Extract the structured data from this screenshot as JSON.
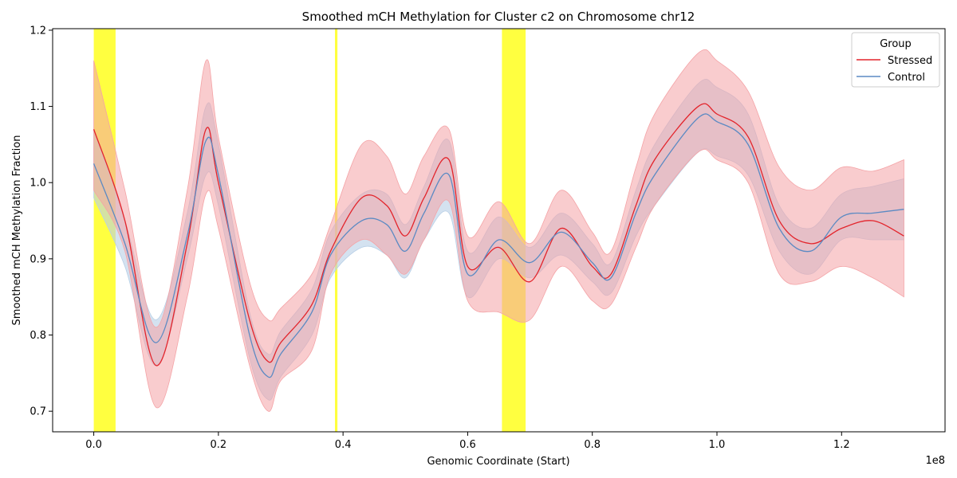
{
  "chart_data": {
    "type": "line",
    "title": "Smoothed mCH Methylation for Cluster c2 on Chromosome chr12",
    "xlabel": "Genomic Coordinate (Start)",
    "ylabel": "Smoothed mCH Methylation Fraction",
    "x_offset_label": "1e8",
    "xlim": [
      -0.066,
      1.366
    ],
    "ylim": [
      0.673,
      1.202
    ],
    "x_ticks": [
      0.0,
      0.2,
      0.4,
      0.6,
      0.8,
      1.0,
      1.2
    ],
    "x_tick_labels": [
      "0.0",
      "0.2",
      "0.4",
      "0.6",
      "0.8",
      "1.0",
      "1.2"
    ],
    "y_ticks": [
      0.7,
      0.8,
      0.9,
      1.0,
      1.1,
      1.2
    ],
    "y_tick_labels": [
      "0.7",
      "0.8",
      "0.9",
      "1.0",
      "1.1",
      "1.2"
    ],
    "grid": false,
    "legend": {
      "title": "Group",
      "position": "top-right"
    },
    "highlight_color": "#ffff00",
    "highlights": [
      [
        0.0,
        0.035
      ],
      [
        0.387,
        0.391
      ],
      [
        0.655,
        0.693
      ]
    ],
    "series": [
      {
        "name": "Stressed",
        "color": "#e3242b",
        "band_color": "#f4a3a6",
        "x": [
          0.0,
          0.05,
          0.1,
          0.15,
          0.18,
          0.2,
          0.25,
          0.28,
          0.3,
          0.35,
          0.38,
          0.43,
          0.47,
          0.5,
          0.53,
          0.57,
          0.6,
          0.65,
          0.7,
          0.75,
          0.8,
          0.83,
          0.87,
          0.9,
          0.97,
          1.0,
          1.05,
          1.1,
          1.15,
          1.2,
          1.25,
          1.3
        ],
        "y": [
          1.07,
          0.95,
          0.76,
          0.92,
          1.07,
          1.0,
          0.82,
          0.765,
          0.79,
          0.84,
          0.91,
          0.98,
          0.97,
          0.93,
          0.98,
          1.03,
          0.89,
          0.915,
          0.87,
          0.94,
          0.89,
          0.88,
          0.97,
          1.03,
          1.1,
          1.09,
          1.06,
          0.95,
          0.92,
          0.94,
          0.95,
          0.93
        ],
        "lower": [
          0.99,
          0.91,
          0.705,
          0.85,
          0.985,
          0.94,
          0.76,
          0.7,
          0.74,
          0.78,
          0.88,
          0.925,
          0.905,
          0.88,
          0.925,
          0.975,
          0.845,
          0.83,
          0.82,
          0.89,
          0.845,
          0.84,
          0.915,
          0.97,
          1.04,
          1.03,
          1.0,
          0.88,
          0.87,
          0.89,
          0.875,
          0.85
        ],
        "upper": [
          1.16,
          0.99,
          0.81,
          0.99,
          1.16,
          1.06,
          0.87,
          0.82,
          0.835,
          0.88,
          0.945,
          1.05,
          1.035,
          0.985,
          1.035,
          1.07,
          0.93,
          0.975,
          0.92,
          0.99,
          0.935,
          0.91,
          1.02,
          1.09,
          1.17,
          1.16,
          1.12,
          1.02,
          0.99,
          1.02,
          1.015,
          1.03
        ]
      },
      {
        "name": "Control",
        "color": "#5b8ac3",
        "band_color": "#b8cfe6",
        "x": [
          0.0,
          0.05,
          0.1,
          0.15,
          0.18,
          0.2,
          0.25,
          0.28,
          0.3,
          0.35,
          0.38,
          0.43,
          0.47,
          0.5,
          0.53,
          0.57,
          0.6,
          0.65,
          0.7,
          0.75,
          0.8,
          0.83,
          0.87,
          0.9,
          0.97,
          1.0,
          1.05,
          1.1,
          1.15,
          1.2,
          1.25,
          1.3
        ],
        "y": [
          1.025,
          0.92,
          0.79,
          0.93,
          1.055,
          1.01,
          0.8,
          0.745,
          0.775,
          0.83,
          0.905,
          0.95,
          0.945,
          0.91,
          0.96,
          1.01,
          0.88,
          0.925,
          0.895,
          0.935,
          0.895,
          0.875,
          0.96,
          1.01,
          1.085,
          1.08,
          1.05,
          0.94,
          0.91,
          0.955,
          0.96,
          0.965
        ],
        "lower": [
          0.98,
          0.89,
          0.76,
          0.9,
          1.01,
          0.97,
          0.77,
          0.715,
          0.745,
          0.8,
          0.875,
          0.915,
          0.905,
          0.875,
          0.925,
          0.96,
          0.85,
          0.9,
          0.875,
          0.905,
          0.87,
          0.855,
          0.93,
          0.97,
          1.04,
          1.035,
          1.01,
          0.91,
          0.88,
          0.925,
          0.925,
          0.925
        ],
        "upper": [
          1.07,
          0.95,
          0.82,
          0.96,
          1.1,
          1.05,
          0.83,
          0.775,
          0.805,
          0.86,
          0.935,
          0.985,
          0.985,
          0.945,
          0.995,
          1.055,
          0.91,
          0.955,
          0.915,
          0.96,
          0.92,
          0.895,
          0.99,
          1.05,
          1.13,
          1.125,
          1.09,
          0.97,
          0.94,
          0.985,
          0.995,
          1.005
        ]
      }
    ]
  }
}
